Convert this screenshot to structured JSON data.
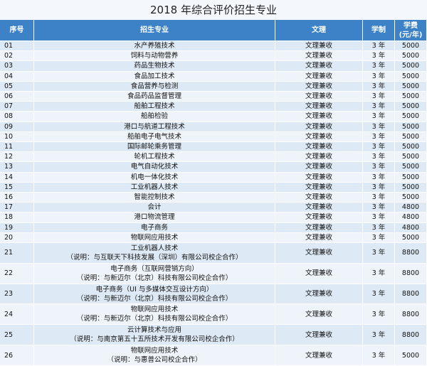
{
  "title": "2018 年综合评价招生专业",
  "header": {
    "no": "序号",
    "major": "招生专业",
    "type": "文理",
    "years": "学制",
    "fee": "学费",
    "fee_unit": "(元/年)"
  },
  "rows": [
    {
      "no": "01",
      "major": "水产养殖技术",
      "type": "文理兼收",
      "years": "3 年",
      "fee": 5000
    },
    {
      "no": "02",
      "major": "饲料与动物营养",
      "type": "文理兼收",
      "years": "3 年",
      "fee": 5000
    },
    {
      "no": "03",
      "major": "药品生物技术",
      "type": "文理兼收",
      "years": "3 年",
      "fee": 5000
    },
    {
      "no": "04",
      "major": "食品加工技术",
      "type": "文理兼收",
      "years": "3 年",
      "fee": 5000
    },
    {
      "no": "05",
      "major": "食品营养与检测",
      "type": "文理兼收",
      "years": "3 年",
      "fee": 5000
    },
    {
      "no": "06",
      "major": "食品药品监督管理",
      "type": "文理兼收",
      "years": "3 年",
      "fee": 5000
    },
    {
      "no": "07",
      "major": "船舶工程技术",
      "type": "文理兼收",
      "years": "3 年",
      "fee": 5000
    },
    {
      "no": "08",
      "major": "船舶检验",
      "type": "文理兼收",
      "years": "3 年",
      "fee": 5000
    },
    {
      "no": "09",
      "major": "港口与航道工程技术",
      "type": "文理兼收",
      "years": "3 年",
      "fee": 5000
    },
    {
      "no": "10",
      "major": "船舶电子电气技术",
      "type": "文理兼收",
      "years": "3 年",
      "fee": 5000
    },
    {
      "no": "11",
      "major": "国际邮轮乘务管理",
      "type": "文理兼收",
      "years": "3 年",
      "fee": 5000
    },
    {
      "no": "12",
      "major": "轮机工程技术",
      "type": "文理兼收",
      "years": "3 年",
      "fee": 5000
    },
    {
      "no": "13",
      "major": "电气自动化技术",
      "type": "文理兼收",
      "years": "3 年",
      "fee": 5000
    },
    {
      "no": "14",
      "major": "机电一体化技术",
      "type": "文理兼收",
      "years": "3 年",
      "fee": 5000
    },
    {
      "no": "15",
      "major": "工业机器人技术",
      "type": "文理兼收",
      "years": "3 年",
      "fee": 5000
    },
    {
      "no": "16",
      "major": "智能控制技术",
      "type": "文理兼收",
      "years": "3 年",
      "fee": 5000
    },
    {
      "no": "17",
      "major": "会计",
      "type": "文理兼收",
      "years": "3 年",
      "fee": 4800
    },
    {
      "no": "18",
      "major": "港口物流管理",
      "type": "文理兼收",
      "years": "3 年",
      "fee": 4800
    },
    {
      "no": "19",
      "major": "电子商务",
      "type": "文理兼收",
      "years": "3 年",
      "fee": 4800
    },
    {
      "no": "20",
      "major": "物联网应用技术",
      "type": "文理兼收",
      "years": "3 年",
      "fee": 5000
    },
    {
      "no": "21",
      "major": "工业机器人技术",
      "note": "（说明：与互联天下科技发展（深圳）有限公司校企合作）",
      "type": "文理兼收",
      "years": "3 年",
      "fee": 8800
    },
    {
      "no": "22",
      "major": "电子商务（互联网营销方向）",
      "note": "（说明：与新迈尔（北京）科技有限公司校企合作）",
      "type": "文理兼收",
      "years": "3 年",
      "fee": 8800
    },
    {
      "no": "23",
      "major": "电子商务（UI 与多媒体交互设计方向）",
      "note": "（说明：与新迈尔（北京）科技有限公司校企合作）",
      "type": "文理兼收",
      "years": "3 年",
      "fee": 8800
    },
    {
      "no": "24",
      "major": "物联网应用技术",
      "note": "（说明：与新迈尔（北京）科技有限公司校企合作）",
      "type": "文理兼收",
      "years": "3 年",
      "fee": 8800
    },
    {
      "no": "25",
      "major": "云计算技术与应用",
      "note": "（说明：与南京第五十五所技术开发有限公司校企合作）",
      "type": "文理兼收",
      "years": "3 年",
      "fee": 8800
    },
    {
      "no": "26",
      "major": "物联网应用技术",
      "note": "（说明：与惠普公司校企合作）",
      "type": "文理兼收",
      "years": "3 年",
      "fee": 5000
    }
  ]
}
